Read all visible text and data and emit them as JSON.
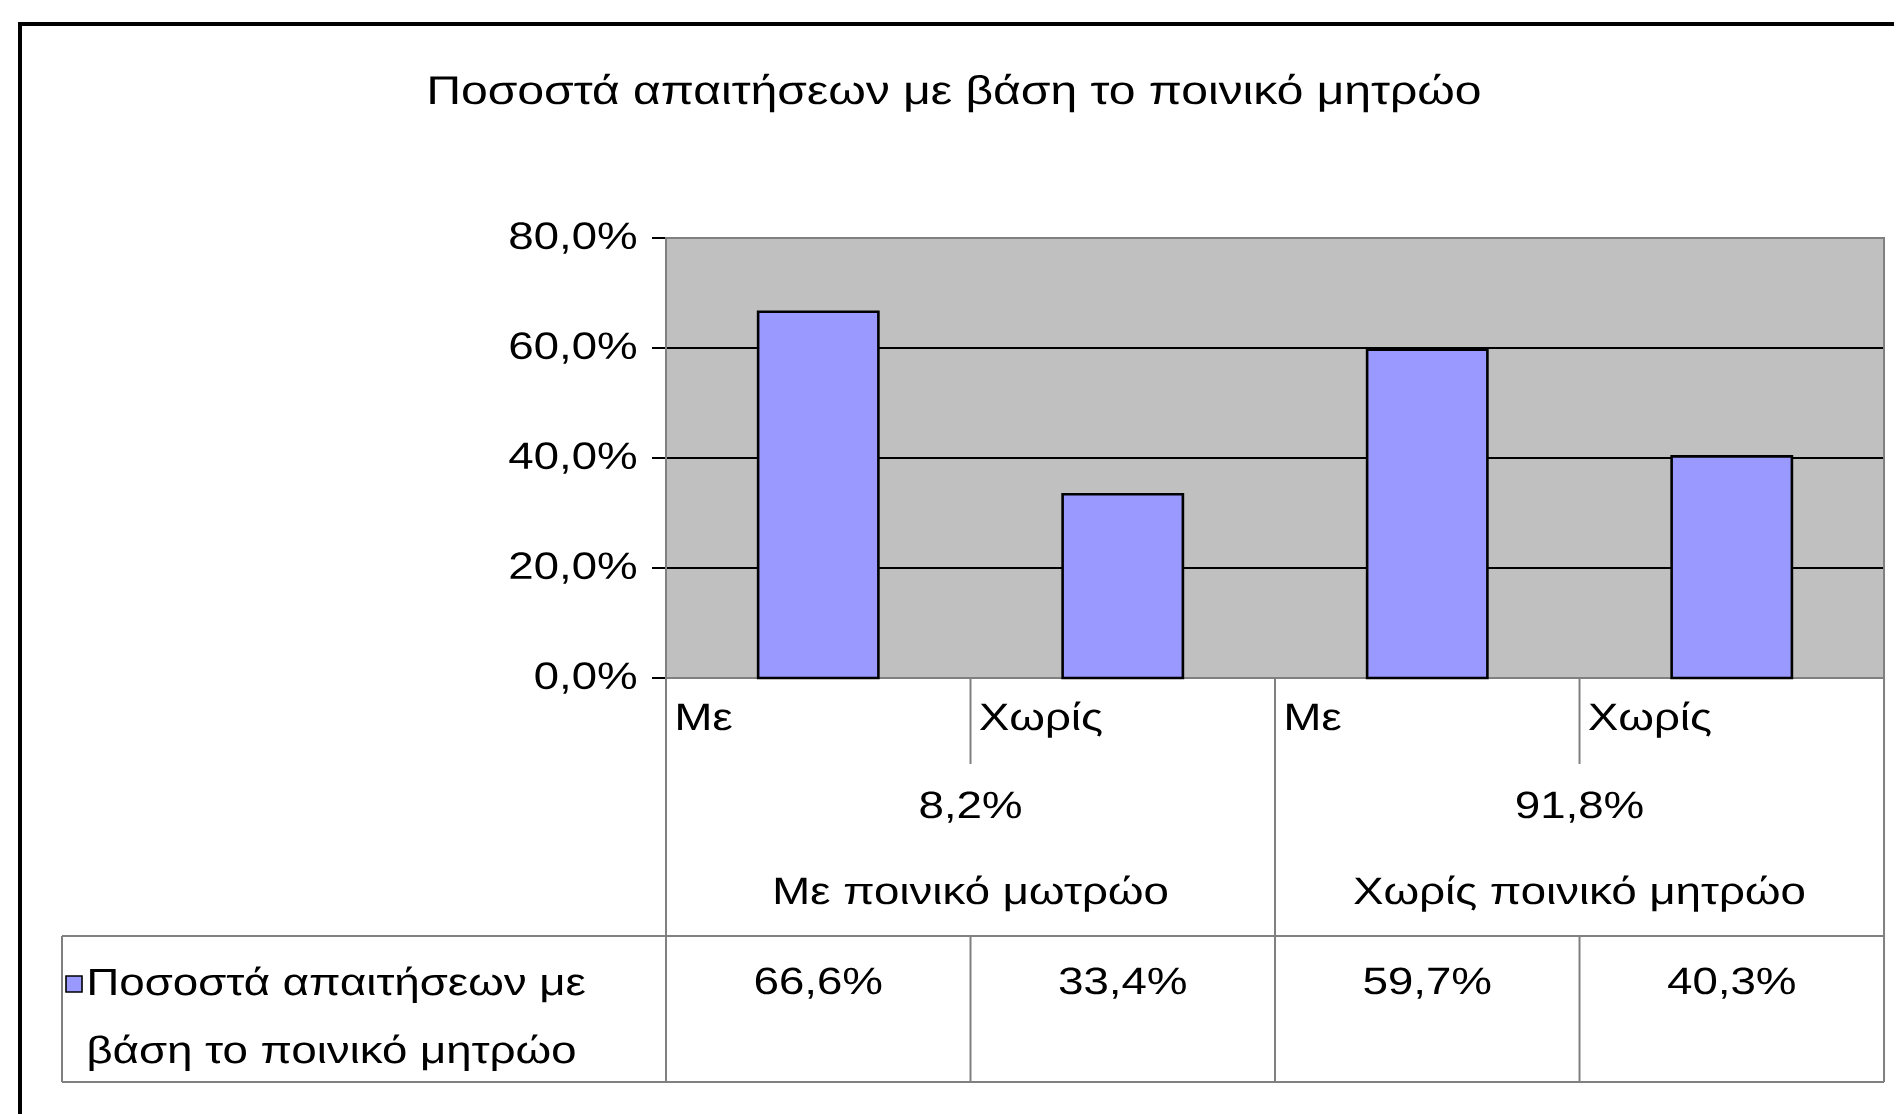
{
  "chart_data": {
    "type": "bar",
    "title": "Ποσοστά απαιτήσεων με βάση το ποινικό μητρώο",
    "categories": [
      "Με",
      "Χωρίς",
      "Με",
      "Χωρίς"
    ],
    "series": [
      {
        "name": "Ποσοστά απαιτήσεων με βάση το ποινικό μητρώο",
        "color": "#9999ff",
        "values": [
          66.6,
          33.4,
          59.7,
          40.3
        ],
        "value_labels": [
          "66,6%",
          "33,4%",
          "59,7%",
          "40,3%"
        ]
      }
    ],
    "ylim": [
      0,
      80
    ],
    "yticks": [
      {
        "value": 0,
        "label": "0,0%"
      },
      {
        "value": 20,
        "label": "20,0%"
      },
      {
        "value": 40,
        "label": "40,0%"
      },
      {
        "value": 60,
        "label": "60,0%"
      },
      {
        "value": 80,
        "label": "80,0%"
      }
    ],
    "grid": "y",
    "legend": "bottom left",
    "annotations": [
      "8,2%",
      "91,8%",
      "Με ποινικό μωτρώο",
      "Χωρίς ποινικό μητρώο"
    ]
  }
}
